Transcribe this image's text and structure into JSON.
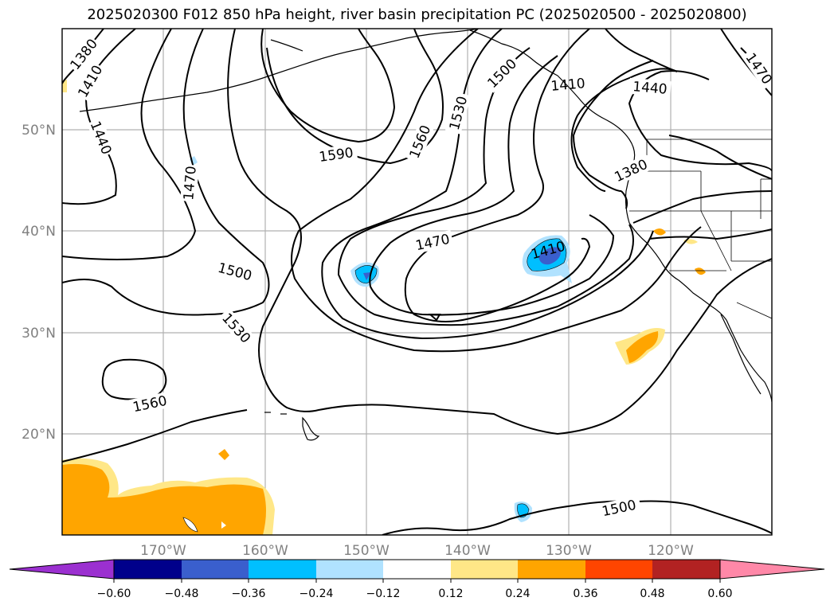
{
  "title": "2025020300 F012 850 hPa height, river basin precipitation PC (2025020500 - 2025020800)",
  "lat_labels": [
    "50°N",
    "40°N",
    "30°N",
    "20°N"
  ],
  "lon_labels": [
    "170°W",
    "160°W",
    "150°W",
    "140°W",
    "130°W",
    "120°W"
  ],
  "contour_labels": [
    "1380",
    "1410",
    "1440",
    "1470",
    "1500",
    "1530",
    "1560",
    "1590",
    "1560",
    "1530",
    "1500",
    "1470",
    "1410",
    "1500",
    "1440",
    "1410",
    "1380",
    "1470",
    "1560",
    "1500"
  ],
  "colorbar": {
    "tick_labels": [
      "−0.60",
      "−0.48",
      "−0.36",
      "−0.24",
      "−0.12",
      "0.12",
      "0.24",
      "0.36",
      "0.48",
      "0.60"
    ],
    "colors": [
      "#9b30d0",
      "#00008b",
      "#3a5fcd",
      "#00bfff",
      "#b0e2ff",
      "#ffffff",
      "#ffe787",
      "#ffa500",
      "#ff4500",
      "#b22222",
      "#ff88a8"
    ]
  }
}
